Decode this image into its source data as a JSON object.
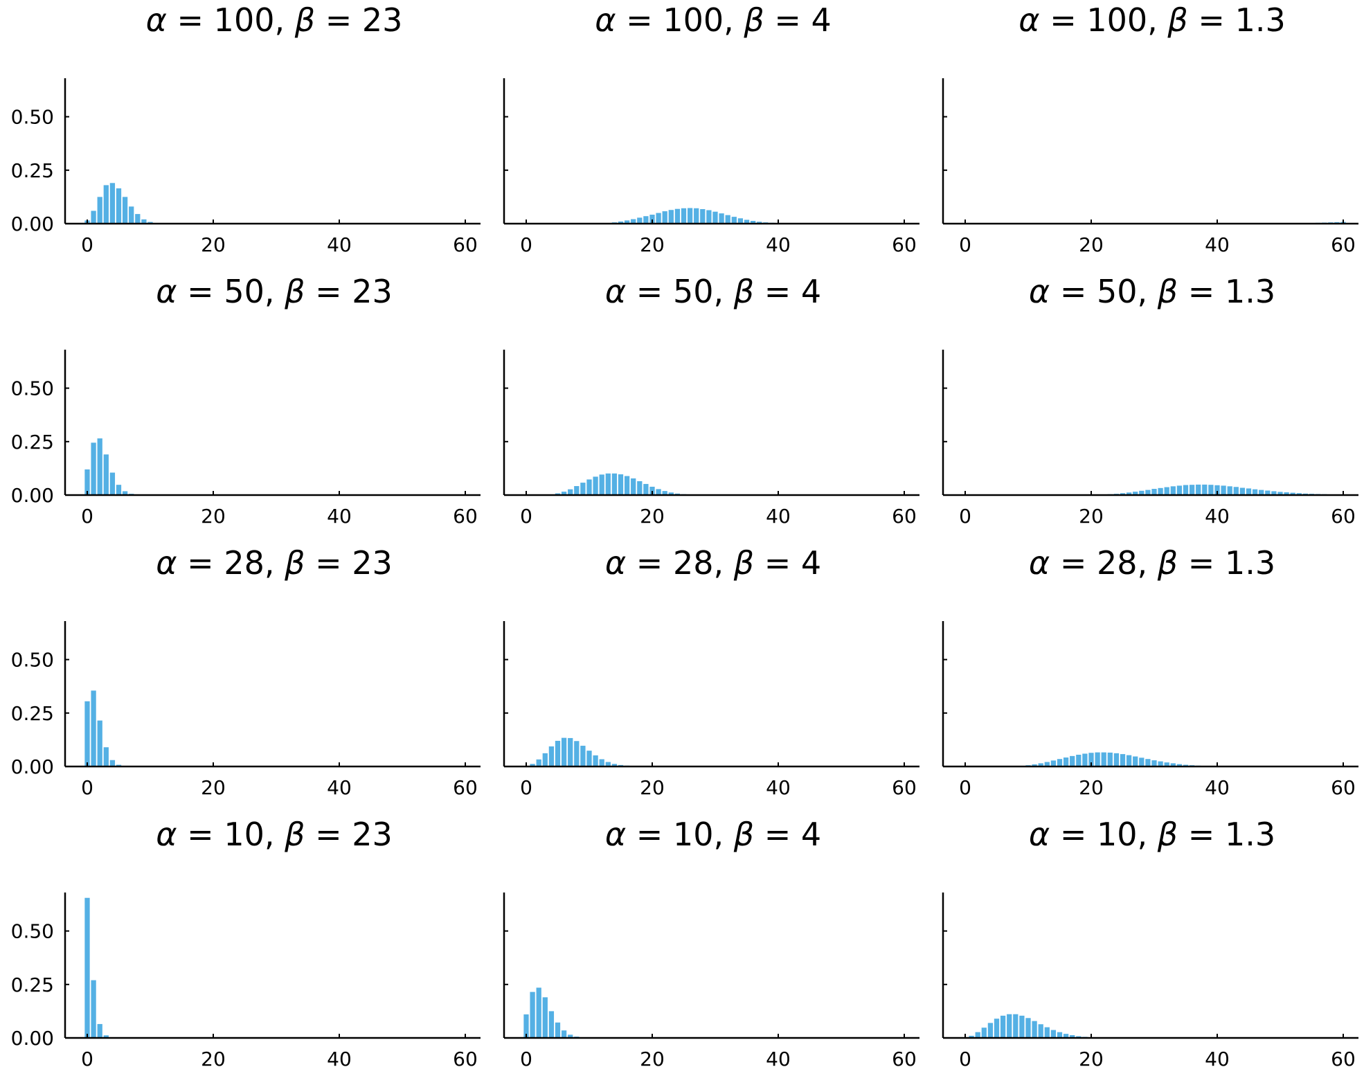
{
  "figure": {
    "bar_color": "#54b0e4",
    "axis_color": "#000000",
    "background": "#ffffff"
  },
  "chart_data": [
    {
      "type": "bar",
      "greek": {
        "a": "α",
        "b": "β"
      },
      "alpha": "100",
      "beta": "23",
      "xlim": [
        0,
        60
      ],
      "ylim": [
        0,
        0.68
      ],
      "xticks": [
        0,
        20,
        40,
        60
      ],
      "yticks": [
        0.0,
        0.25,
        0.5
      ],
      "ytick_labels": [
        "0.00",
        "0.25",
        "0.50"
      ],
      "grid": false,
      "values": [
        0.015,
        0.06,
        0.125,
        0.18,
        0.19,
        0.165,
        0.125,
        0.08,
        0.045,
        0.02,
        0.008,
        0.003
      ]
    },
    {
      "type": "bar",
      "greek": {
        "a": "α",
        "b": "β"
      },
      "alpha": "100",
      "beta": "4",
      "xlim": [
        0,
        60
      ],
      "ylim": [
        0,
        0.68
      ],
      "xticks": [
        0,
        20,
        40,
        60
      ],
      "yticks": [
        0.0,
        0.25,
        0.5
      ],
      "ytick_labels": [
        "0.00",
        "0.25",
        "0.50"
      ],
      "grid": false,
      "values": [
        0,
        0,
        0,
        0,
        0,
        0,
        0,
        0,
        0,
        0,
        0,
        0,
        0.001,
        0.003,
        0.006,
        0.01,
        0.015,
        0.021,
        0.028,
        0.035,
        0.042,
        0.05,
        0.058,
        0.064,
        0.069,
        0.072,
        0.073,
        0.072,
        0.068,
        0.063,
        0.056,
        0.048,
        0.04,
        0.032,
        0.025,
        0.018,
        0.013,
        0.009,
        0.006,
        0.004,
        0.002,
        0.001
      ]
    },
    {
      "type": "bar",
      "greek": {
        "a": "α",
        "b": "β"
      },
      "alpha": "100",
      "beta": "1.3",
      "xlim": [
        0,
        60
      ],
      "ylim": [
        0,
        0.68
      ],
      "xticks": [
        0,
        20,
        40,
        60
      ],
      "yticks": [
        0.0,
        0.25,
        0.5
      ],
      "ytick_labels": [
        "0.00",
        "0.25",
        "0.50"
      ],
      "grid": false,
      "values": [
        0,
        0,
        0,
        0,
        0,
        0,
        0,
        0,
        0,
        0,
        0,
        0,
        0,
        0,
        0,
        0,
        0,
        0,
        0,
        0,
        0,
        0,
        0,
        0,
        0,
        0,
        0,
        0,
        0,
        0,
        0,
        0,
        0,
        0,
        0,
        0,
        0,
        0,
        0,
        0,
        0,
        0,
        0,
        0,
        0,
        0,
        0,
        0,
        0,
        0,
        0,
        0,
        0,
        0,
        0.002,
        0.003,
        0.004,
        0.005,
        0.006,
        0.007,
        0.008
      ]
    },
    {
      "type": "bar",
      "greek": {
        "a": "α",
        "b": "β"
      },
      "alpha": "50",
      "beta": "23",
      "xlim": [
        0,
        60
      ],
      "ylim": [
        0,
        0.68
      ],
      "xticks": [
        0,
        20,
        40,
        60
      ],
      "yticks": [
        0.0,
        0.25,
        0.5
      ],
      "ytick_labels": [
        "0.00",
        "0.25",
        "0.50"
      ],
      "grid": false,
      "values": [
        0.12,
        0.245,
        0.265,
        0.19,
        0.105,
        0.048,
        0.018,
        0.006,
        0.002
      ]
    },
    {
      "type": "bar",
      "greek": {
        "a": "α",
        "b": "β"
      },
      "alpha": "50",
      "beta": "4",
      "xlim": [
        0,
        60
      ],
      "ylim": [
        0,
        0.68
      ],
      "xticks": [
        0,
        20,
        40,
        60
      ],
      "yticks": [
        0.0,
        0.25,
        0.5
      ],
      "ytick_labels": [
        "0.00",
        "0.25",
        "0.50"
      ],
      "grid": false,
      "values": [
        0,
        0,
        0,
        0.001,
        0.003,
        0.008,
        0.016,
        0.027,
        0.042,
        0.058,
        0.073,
        0.086,
        0.096,
        0.101,
        0.101,
        0.097,
        0.089,
        0.078,
        0.065,
        0.052,
        0.039,
        0.028,
        0.019,
        0.012,
        0.007,
        0.004,
        0.002,
        0.001
      ]
    },
    {
      "type": "bar",
      "greek": {
        "a": "α",
        "b": "β"
      },
      "alpha": "50",
      "beta": "1.3",
      "xlim": [
        0,
        60
      ],
      "ylim": [
        0,
        0.68
      ],
      "xticks": [
        0,
        20,
        40,
        60
      ],
      "yticks": [
        0.0,
        0.25,
        0.5
      ],
      "ytick_labels": [
        "0.00",
        "0.25",
        "0.50"
      ],
      "grid": false,
      "values": [
        0,
        0,
        0,
        0,
        0,
        0,
        0,
        0,
        0,
        0,
        0,
        0,
        0,
        0,
        0,
        0,
        0,
        0,
        0,
        0,
        0,
        0.001,
        0.002,
        0.004,
        0.006,
        0.009,
        0.012,
        0.016,
        0.02,
        0.024,
        0.029,
        0.033,
        0.037,
        0.041,
        0.044,
        0.047,
        0.048,
        0.049,
        0.049,
        0.048,
        0.046,
        0.044,
        0.041,
        0.038,
        0.034,
        0.031,
        0.027,
        0.024,
        0.021,
        0.018,
        0.015,
        0.013,
        0.011,
        0.009,
        0.007,
        0.006,
        0.005,
        0.004,
        0.003,
        0.002
      ]
    },
    {
      "type": "bar",
      "greek": {
        "a": "α",
        "b": "β"
      },
      "alpha": "28",
      "beta": "23",
      "xlim": [
        0,
        60
      ],
      "ylim": [
        0,
        0.68
      ],
      "xticks": [
        0,
        20,
        40,
        60
      ],
      "yticks": [
        0.0,
        0.25,
        0.5
      ],
      "ytick_labels": [
        "0.00",
        "0.25",
        "0.50"
      ],
      "grid": false,
      "values": [
        0.305,
        0.355,
        0.215,
        0.09,
        0.03,
        0.008,
        0.002
      ]
    },
    {
      "type": "bar",
      "greek": {
        "a": "α",
        "b": "β"
      },
      "alpha": "28",
      "beta": "4",
      "xlim": [
        0,
        60
      ],
      "ylim": [
        0,
        0.68
      ],
      "xticks": [
        0,
        20,
        40,
        60
      ],
      "yticks": [
        0.0,
        0.25,
        0.5
      ],
      "ytick_labels": [
        "0.00",
        "0.25",
        "0.50"
      ],
      "grid": false,
      "values": [
        0.002,
        0.012,
        0.033,
        0.062,
        0.094,
        0.12,
        0.134,
        0.133,
        0.119,
        0.097,
        0.074,
        0.052,
        0.034,
        0.021,
        0.012,
        0.007,
        0.004,
        0.002,
        0.001
      ]
    },
    {
      "type": "bar",
      "greek": {
        "a": "α",
        "b": "β"
      },
      "alpha": "28",
      "beta": "1.3",
      "xlim": [
        0,
        60
      ],
      "ylim": [
        0,
        0.68
      ],
      "xticks": [
        0,
        20,
        40,
        60
      ],
      "yticks": [
        0.0,
        0.25,
        0.5
      ],
      "ytick_labels": [
        "0.00",
        "0.25",
        "0.50"
      ],
      "grid": false,
      "values": [
        0,
        0,
        0,
        0,
        0,
        0,
        0,
        0,
        0.001,
        0.003,
        0.006,
        0.01,
        0.015,
        0.021,
        0.028,
        0.035,
        0.042,
        0.049,
        0.055,
        0.06,
        0.064,
        0.066,
        0.066,
        0.065,
        0.062,
        0.058,
        0.053,
        0.047,
        0.041,
        0.035,
        0.029,
        0.024,
        0.019,
        0.015,
        0.011,
        0.008,
        0.006,
        0.004,
        0.003,
        0.002,
        0.001
      ]
    },
    {
      "type": "bar",
      "greek": {
        "a": "α",
        "b": "β"
      },
      "alpha": "10",
      "beta": "23",
      "xlim": [
        0,
        60
      ],
      "ylim": [
        0,
        0.68
      ],
      "xticks": [
        0,
        20,
        40,
        60
      ],
      "yticks": [
        0.0,
        0.25,
        0.5
      ],
      "ytick_labels": [
        "0.00",
        "0.25",
        "0.50"
      ],
      "grid": false,
      "values": [
        0.655,
        0.27,
        0.065,
        0.012,
        0.002
      ]
    },
    {
      "type": "bar",
      "greek": {
        "a": "α",
        "b": "β"
      },
      "alpha": "10",
      "beta": "4",
      "xlim": [
        0,
        60
      ],
      "ylim": [
        0,
        0.68
      ],
      "xticks": [
        0,
        20,
        40,
        60
      ],
      "yticks": [
        0.0,
        0.25,
        0.5
      ],
      "ytick_labels": [
        "0.00",
        "0.25",
        "0.50"
      ],
      "grid": false,
      "values": [
        0.11,
        0.215,
        0.235,
        0.19,
        0.125,
        0.072,
        0.035,
        0.015,
        0.006,
        0.002,
        0.001
      ]
    },
    {
      "type": "bar",
      "greek": {
        "a": "α",
        "b": "β"
      },
      "alpha": "10",
      "beta": "1.3",
      "xlim": [
        0,
        60
      ],
      "ylim": [
        0,
        0.68
      ],
      "xticks": [
        0,
        20,
        40,
        60
      ],
      "yticks": [
        0.0,
        0.25,
        0.5
      ],
      "ytick_labels": [
        "0.00",
        "0.25",
        "0.50"
      ],
      "grid": false,
      "values": [
        0.002,
        0.01,
        0.027,
        0.048,
        0.07,
        0.09,
        0.104,
        0.111,
        0.111,
        0.104,
        0.093,
        0.079,
        0.064,
        0.05,
        0.037,
        0.027,
        0.019,
        0.013,
        0.008,
        0.005,
        0.003,
        0.002,
        0.001
      ]
    }
  ]
}
